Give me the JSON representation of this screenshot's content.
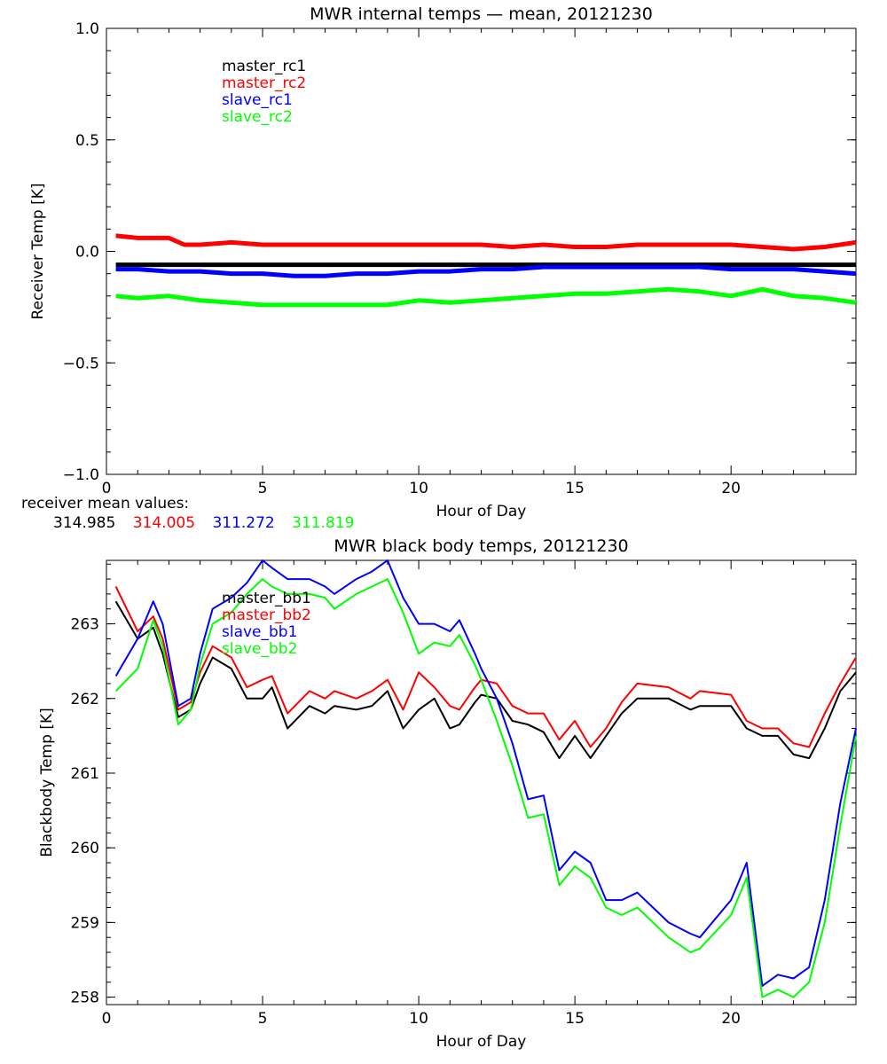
{
  "receiver_mean": {
    "label": "receiver mean values:",
    "values": [
      {
        "text": "314.985",
        "color": "#000000"
      },
      {
        "text": "314.005",
        "color": "#ff0000"
      },
      {
        "text": "311.272",
        "color": "#0000ff"
      },
      {
        "text": "311.819",
        "color": "#00ff00"
      }
    ]
  },
  "chart_data": [
    {
      "type": "line",
      "title": "MWR internal temps — mean, 20121230",
      "xlabel": "Hour of Day",
      "ylabel": "Receiver Temp [K]",
      "xlim": [
        0,
        24
      ],
      "ylim": [
        -1.0,
        1.0
      ],
      "xticks": [
        0,
        5,
        10,
        15,
        20
      ],
      "xtick_labels": [
        "0",
        "5",
        "10",
        "15",
        "20"
      ],
      "yticks": [
        -1.0,
        -0.5,
        0.0,
        0.5,
        1.0
      ],
      "ytick_labels": [
        "−1.0",
        "−0.5",
        "0.0",
        "0.5",
        "1.0"
      ],
      "grid": false,
      "legend_placement": "top-left",
      "x": [
        0.3,
        1,
        2,
        2.5,
        3,
        4,
        5,
        6,
        7,
        8,
        9,
        10,
        11,
        12,
        13,
        14,
        15,
        16,
        17,
        18,
        19,
        20,
        21,
        22,
        23,
        24
      ],
      "series": [
        {
          "name": "master_rc1",
          "color": "#000000",
          "values": [
            -0.06,
            -0.06,
            -0.06,
            -0.06,
            -0.06,
            -0.06,
            -0.06,
            -0.06,
            -0.06,
            -0.06,
            -0.06,
            -0.06,
            -0.06,
            -0.06,
            -0.06,
            -0.06,
            -0.06,
            -0.06,
            -0.06,
            -0.06,
            -0.06,
            -0.06,
            -0.06,
            -0.06,
            -0.06,
            -0.06
          ]
        },
        {
          "name": "master_rc2",
          "color": "#ff0000",
          "values": [
            0.07,
            0.06,
            0.06,
            0.03,
            0.03,
            0.04,
            0.03,
            0.03,
            0.03,
            0.03,
            0.03,
            0.03,
            0.03,
            0.03,
            0.02,
            0.03,
            0.02,
            0.02,
            0.03,
            0.03,
            0.03,
            0.03,
            0.02,
            0.01,
            0.02,
            0.04
          ]
        },
        {
          "name": "slave_rc1",
          "color": "#0000ff",
          "values": [
            -0.08,
            -0.08,
            -0.09,
            -0.09,
            -0.09,
            -0.1,
            -0.1,
            -0.11,
            -0.11,
            -0.1,
            -0.1,
            -0.09,
            -0.09,
            -0.08,
            -0.08,
            -0.07,
            -0.07,
            -0.07,
            -0.07,
            -0.07,
            -0.07,
            -0.08,
            -0.08,
            -0.08,
            -0.09,
            -0.1
          ]
        },
        {
          "name": "slave_rc2",
          "color": "#00ff00",
          "values": [
            -0.2,
            -0.21,
            -0.2,
            -0.21,
            -0.22,
            -0.23,
            -0.24,
            -0.24,
            -0.24,
            -0.24,
            -0.24,
            -0.22,
            -0.23,
            -0.22,
            -0.21,
            -0.2,
            -0.19,
            -0.19,
            -0.18,
            -0.17,
            -0.18,
            -0.2,
            -0.17,
            -0.2,
            -0.21,
            -0.23
          ]
        }
      ]
    },
    {
      "type": "line",
      "title": "MWR black body temps, 20121230",
      "xlabel": "Hour of Day",
      "ylabel": "Blackbody Temp [K]",
      "xlim": [
        0,
        24
      ],
      "ylim": [
        257.9,
        263.85
      ],
      "xticks": [
        0,
        5,
        10,
        15,
        20
      ],
      "xtick_labels": [
        "0",
        "5",
        "10",
        "15",
        "20"
      ],
      "yticks": [
        258,
        259,
        260,
        261,
        262,
        263
      ],
      "ytick_labels": [
        "258",
        "259",
        "260",
        "261",
        "262",
        "263"
      ],
      "grid": false,
      "legend_placement": "top-left",
      "x": [
        0.3,
        1,
        1.5,
        1.8,
        2.3,
        2.7,
        3,
        3.4,
        4,
        4.5,
        5,
        5.3,
        5.8,
        6.5,
        7,
        7.3,
        8,
        8.5,
        9,
        9.5,
        10,
        10.5,
        11,
        11.3,
        11.8,
        12,
        12.5,
        13,
        13.5,
        14,
        14.5,
        15,
        15.5,
        16,
        16.5,
        17,
        18,
        18.7,
        19,
        20,
        20.5,
        21,
        21.5,
        22,
        22.5,
        23,
        23.5,
        24
      ],
      "series": [
        {
          "name": "master_bb1",
          "color": "#000000",
          "values": [
            263.3,
            262.8,
            262.95,
            262.6,
            261.75,
            261.85,
            262.2,
            262.55,
            262.4,
            262.0,
            262.0,
            262.15,
            261.6,
            261.9,
            261.8,
            261.9,
            261.85,
            261.9,
            262.1,
            261.6,
            261.85,
            262.0,
            261.6,
            261.65,
            261.95,
            262.05,
            262.0,
            261.7,
            261.65,
            261.55,
            261.2,
            261.5,
            261.2,
            261.5,
            261.8,
            262.0,
            262.0,
            261.85,
            261.9,
            261.9,
            261.6,
            261.5,
            261.5,
            261.25,
            261.2,
            261.6,
            262.1,
            262.35
          ]
        },
        {
          "name": "master_bb2",
          "color": "#ff0000",
          "values": [
            263.5,
            262.9,
            263.1,
            262.8,
            261.85,
            261.95,
            262.35,
            262.7,
            262.55,
            262.15,
            262.25,
            262.3,
            261.8,
            262.1,
            262.0,
            262.1,
            262.0,
            262.1,
            262.25,
            261.85,
            262.35,
            262.15,
            261.9,
            261.85,
            262.15,
            262.25,
            262.2,
            261.9,
            261.8,
            261.8,
            261.45,
            261.7,
            261.35,
            261.6,
            261.95,
            262.2,
            262.15,
            262.0,
            262.1,
            262.05,
            261.7,
            261.6,
            261.6,
            261.4,
            261.35,
            261.8,
            262.2,
            262.55
          ]
        },
        {
          "name": "slave_bb1",
          "color": "#0000ff",
          "values": [
            262.3,
            262.8,
            263.3,
            263.0,
            261.9,
            262.0,
            262.6,
            263.2,
            263.35,
            263.55,
            263.85,
            263.75,
            263.6,
            263.6,
            263.5,
            263.4,
            263.6,
            263.7,
            263.85,
            263.35,
            263.0,
            263.0,
            262.9,
            263.05,
            262.6,
            262.4,
            262.0,
            261.4,
            260.65,
            260.7,
            259.7,
            259.95,
            259.8,
            259.3,
            259.3,
            259.4,
            259.0,
            258.85,
            258.8,
            259.3,
            259.8,
            258.15,
            258.3,
            258.25,
            258.4,
            259.3,
            260.6,
            261.6
          ]
        },
        {
          "name": "slave_bb2",
          "color": "#00ff00",
          "values": [
            262.1,
            262.4,
            263.05,
            262.7,
            261.65,
            261.85,
            262.45,
            263.0,
            263.15,
            263.4,
            263.6,
            263.5,
            263.4,
            263.4,
            263.35,
            263.2,
            263.4,
            263.5,
            263.6,
            263.15,
            262.6,
            262.75,
            262.7,
            262.85,
            262.45,
            262.25,
            261.7,
            261.1,
            260.4,
            260.45,
            259.5,
            259.75,
            259.6,
            259.2,
            259.1,
            259.2,
            258.8,
            258.6,
            258.65,
            259.1,
            259.6,
            258.0,
            258.1,
            258.0,
            258.2,
            259.0,
            260.3,
            261.5
          ]
        }
      ]
    }
  ]
}
